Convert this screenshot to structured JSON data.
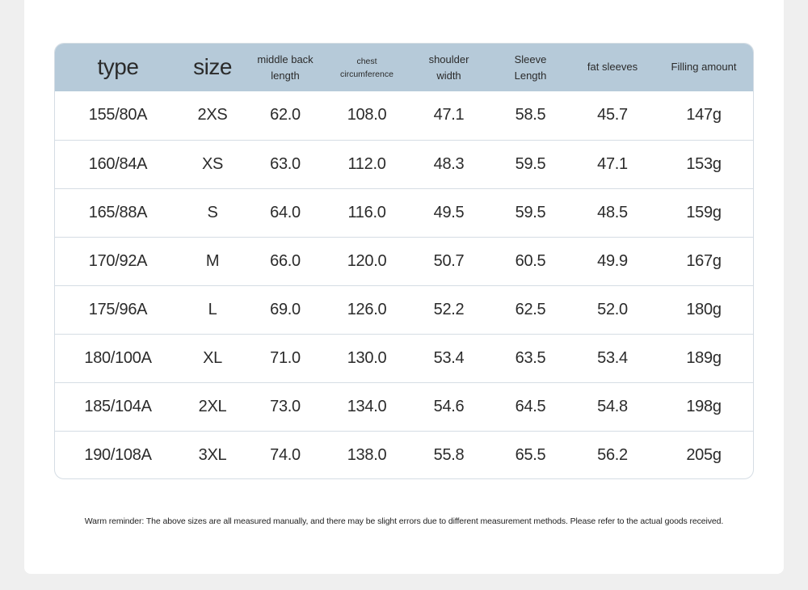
{
  "table": {
    "headers": [
      {
        "lines": [
          "type"
        ]
      },
      {
        "lines": [
          "size"
        ]
      },
      {
        "lines": [
          "middle back",
          "length"
        ]
      },
      {
        "lines": [
          "chest",
          "circumference"
        ]
      },
      {
        "lines": [
          "shoulder",
          "width"
        ]
      },
      {
        "lines": [
          "Sleeve",
          "Length"
        ]
      },
      {
        "lines": [
          "fat sleeves"
        ]
      },
      {
        "lines": [
          "Filling amount"
        ]
      }
    ],
    "rows": [
      [
        "155/80A",
        "2XS",
        "62.0",
        "108.0",
        "47.1",
        "58.5",
        "45.7",
        "147g"
      ],
      [
        "160/84A",
        "XS",
        "63.0",
        "112.0",
        "48.3",
        "59.5",
        "47.1",
        "153g"
      ],
      [
        "165/88A",
        "S",
        "64.0",
        "116.0",
        "49.5",
        "59.5",
        "48.5",
        "159g"
      ],
      [
        "170/92A",
        "M",
        "66.0",
        "120.0",
        "50.7",
        "60.5",
        "49.9",
        "167g"
      ],
      [
        "175/96A",
        "L",
        "69.0",
        "126.0",
        "52.2",
        "62.5",
        "52.0",
        "180g"
      ],
      [
        "180/100A",
        "XL",
        "71.0",
        "130.0",
        "53.4",
        "63.5",
        "53.4",
        "189g"
      ],
      [
        "185/104A",
        "2XL",
        "73.0",
        "134.0",
        "54.6",
        "64.5",
        "54.8",
        "198g"
      ],
      [
        "190/108A",
        "3XL",
        "74.0",
        "138.0",
        "55.8",
        "65.5",
        "56.2",
        "205g"
      ]
    ]
  },
  "reminder": "Warm reminder: The above sizes are all measured manually, and there may be slight errors due to different measurement methods. Please refer to the actual goods received."
}
